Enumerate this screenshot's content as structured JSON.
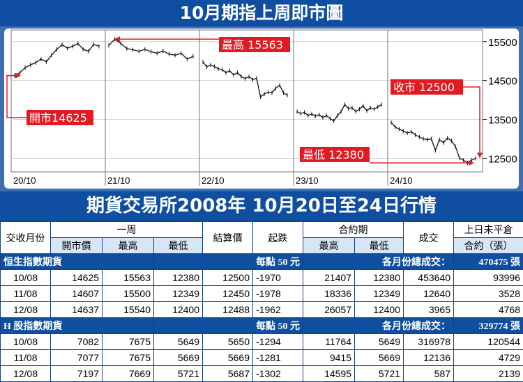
{
  "banner_title": "10月期指上周即市圖",
  "table_title": "期貨交易所2008年 10月20日至24日行情",
  "chart_data": {
    "type": "line",
    "x_labels": [
      "20/10",
      "21/10",
      "22/10",
      "23/10",
      "24/10"
    ],
    "y_ticks": [
      12500,
      13500,
      14500,
      15500
    ],
    "ylim": [
      12150,
      15800
    ],
    "grid": true,
    "annotations": {
      "open": "開市14625",
      "high": "最高 15563",
      "low": "最低 12380",
      "close": "收市 12500"
    },
    "open_value": 14625,
    "high_value": 15563,
    "low_value": 12380,
    "close_value": 12500,
    "days": [
      {
        "label": "20/10",
        "values": [
          14625,
          14700,
          14830,
          14900,
          14960,
          15050,
          14980,
          15150,
          15300,
          15420,
          15330,
          15380,
          15450,
          15300,
          15250,
          15430,
          15380
        ]
      },
      {
        "label": "21/10",
        "values": [
          15400,
          15563,
          15450,
          15320,
          15290,
          15250,
          15300,
          15240,
          15200,
          15260,
          15180,
          15150,
          15200,
          15050,
          15120
        ]
      },
      {
        "label": "22/10",
        "values": [
          14980,
          14850,
          14900,
          14860,
          14800,
          14780,
          14700,
          14750,
          14640,
          14700,
          14600,
          14550,
          14600,
          14520,
          14560,
          14080,
          14150,
          14200,
          14180,
          14300,
          14380,
          14180,
          14120
        ]
      },
      {
        "label": "23/10",
        "values": [
          13700,
          13650,
          13680,
          13600,
          13640,
          13580,
          13620,
          13550,
          13600,
          13520,
          13460,
          13600,
          13700,
          13880,
          13780,
          13800,
          13700,
          13760,
          13850,
          13720,
          13800,
          13760,
          13820,
          13880
        ]
      },
      {
        "label": "24/10",
        "values": [
          13420,
          13300,
          13250,
          13200,
          13150,
          13180,
          13100,
          13050,
          13000,
          12980,
          13000,
          12700,
          12980,
          12900,
          13020,
          12950,
          12800,
          12500,
          12450,
          12380,
          12450,
          12500
        ]
      }
    ]
  },
  "table": {
    "h": {
      "month": "交收月份",
      "week": "一周",
      "settle": "結算價",
      "change": "起跌",
      "contract": "合約期",
      "volume": "成交",
      "oi": "上日未平倉",
      "oi2": "合約（張）",
      "open": "開市價",
      "high": "最高",
      "low": "最低",
      "chigh": "最高",
      "clow": "最低"
    },
    "sections": [
      {
        "name": "恒生指數期貨",
        "unit": "每點 50 元",
        "total_label": "各月份總成交：",
        "total_value": "470475 張",
        "rows": [
          [
            "10/08",
            "14625",
            "15563",
            "12380",
            "12500",
            "-1970",
            "21407",
            "12380",
            "453640",
            "93996"
          ],
          [
            "11/08",
            "14607",
            "15500",
            "12349",
            "12450",
            "-1978",
            "18336",
            "12349",
            "12640",
            "3528"
          ],
          [
            "12/08",
            "14637",
            "15540",
            "12400",
            "12488",
            "-1962",
            "26057",
            "12400",
            "3965",
            "4768"
          ]
        ]
      },
      {
        "name": "H 股指數期貨",
        "unit": "每點 50 元",
        "total_label": "各月份總成交：",
        "total_value": "329774 張",
        "rows": [
          [
            "10/08",
            "7082",
            "7675",
            "5649",
            "5650",
            "-1294",
            "11764",
            "5649",
            "316978",
            "120544"
          ],
          [
            "11/08",
            "7077",
            "7675",
            "5669",
            "5669",
            "-1281",
            "9415",
            "5669",
            "12136",
            "4729"
          ],
          [
            "12/08",
            "7197",
            "7669",
            "5721",
            "5687",
            "-1302",
            "14595",
            "5721",
            "587",
            "2139"
          ]
        ]
      }
    ]
  }
}
